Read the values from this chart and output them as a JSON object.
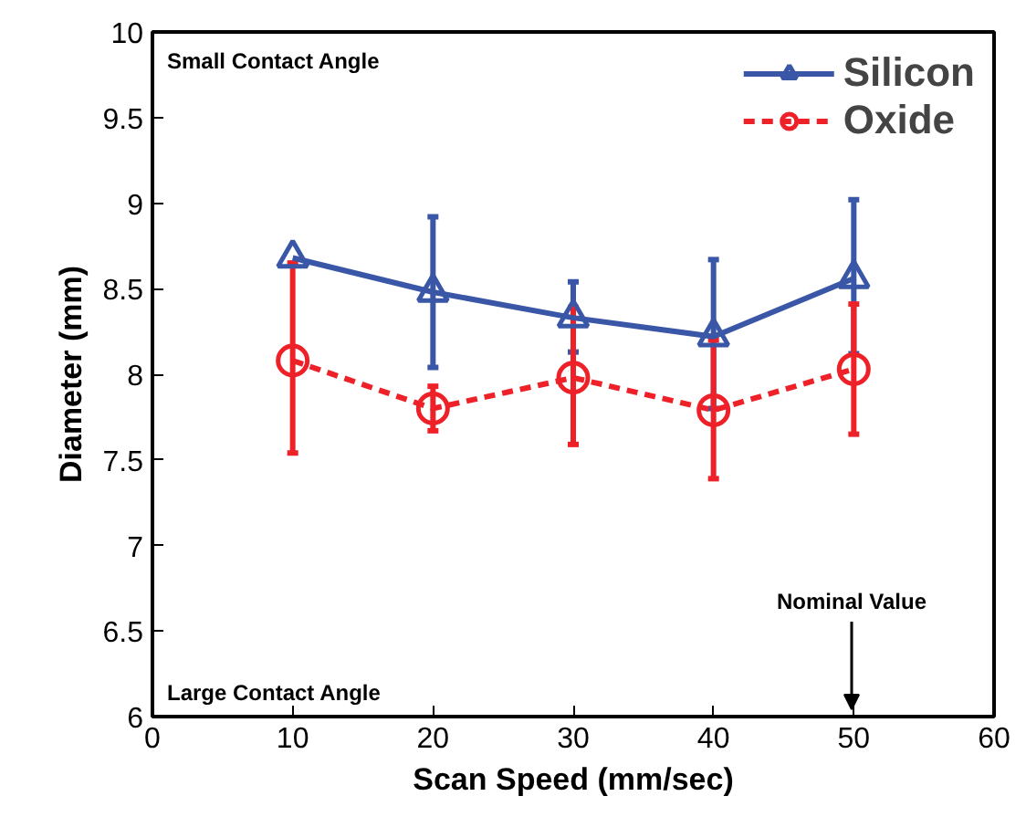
{
  "chart_data": {
    "type": "line",
    "xlabel": "Scan Speed (mm/sec)",
    "ylabel": "Diameter (mm)",
    "x": [
      10,
      20,
      30,
      40,
      50
    ],
    "series": [
      {
        "name": "Silicon",
        "color": "#3a57a7",
        "marker": "triangle",
        "line_style": "solid",
        "values": [
          8.68,
          8.48,
          8.33,
          8.22,
          8.56
        ],
        "errors": [
          null,
          [
            8.04,
            8.92
          ],
          [
            8.13,
            8.54
          ],
          [
            7.8,
            8.67
          ],
          [
            8.12,
            9.02
          ]
        ]
      },
      {
        "name": "Oxide",
        "color": "#ee2128",
        "marker": "circle",
        "line_style": "dashed",
        "values": [
          8.08,
          7.8,
          7.98,
          7.79,
          8.03
        ],
        "errors": [
          [
            7.54,
            8.65
          ],
          [
            7.67,
            7.93
          ],
          [
            7.59,
            8.39
          ],
          [
            7.39,
            8.2
          ],
          [
            7.65,
            8.41
          ]
        ]
      }
    ],
    "xlim": [
      0,
      60
    ],
    "xticks": [
      0,
      10,
      20,
      30,
      40,
      50,
      60
    ],
    "ylim": [
      6,
      10
    ],
    "yticks": [
      6,
      6.5,
      7,
      7.5,
      8,
      8.5,
      9,
      9.5,
      10
    ],
    "grid": false,
    "legend": "top right",
    "annotations": [
      "Small Contact Angle",
      "Large Contact Angle",
      "Nominal Value"
    ]
  }
}
